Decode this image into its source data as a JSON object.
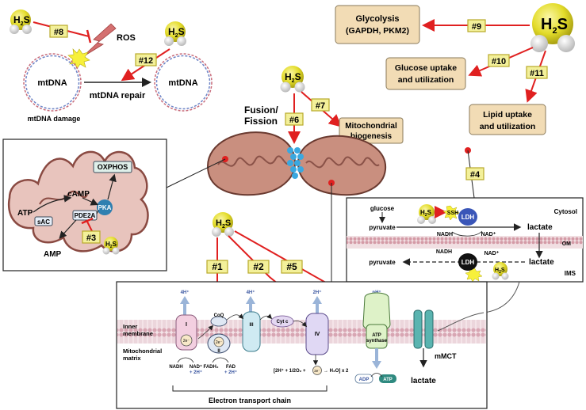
{
  "h2s": {
    "h": "H",
    "sub": "2",
    "s": "S"
  },
  "markers": {
    "m1": "#1",
    "m2": "#2",
    "m3": "#3",
    "m4": "#4",
    "m5": "#5",
    "m6": "#6",
    "m7": "#7",
    "m8": "#8",
    "m9": "#9",
    "m10": "#10",
    "m11": "#11",
    "m12": "#12"
  },
  "top_left": {
    "ros": "ROS",
    "mtdna": "mtDNA",
    "mtdna_damage": "mtDNA damage",
    "mtdna_repair": "mtDNA repair"
  },
  "top_right": {
    "glycolysis_line1": "Glycolysis",
    "glycolysis_line2": "(GAPDH, PKM2)",
    "glucose_line1": "Glucose uptake",
    "glucose_line2": "and utilization",
    "lipid_line1": "Lipid uptake",
    "lipid_line2": "and utilization"
  },
  "center": {
    "fusion_line1": "Fusion/",
    "fusion_line2": "Fission",
    "biogenesis_line1": "Mitochondrial",
    "biogenesis_line2": "biogenesis"
  },
  "left_panel": {
    "oxphos": "OXPHOS",
    "camp": "cAMP",
    "atp": "ATP",
    "pka": "PKA",
    "pde2a": "PDE2A",
    "sac": "sAC",
    "amp": "AMP"
  },
  "right_panel": {
    "glucose": "glucose",
    "pyruvate": "pyruvate",
    "ssh": "SSH",
    "ldh": "LDH",
    "lactate": "lactate",
    "nadh": "NADH",
    "nad": "NAD⁺",
    "cytosol": "Cytosol",
    "om": "OM",
    "ims": "IMS"
  },
  "bottom_panel": {
    "proton_4h_1": "4H⁺",
    "proton_4h_2": "4H⁺",
    "proton_2h": "2H⁺",
    "proton_nh": "nH⁺",
    "coq": "CoQ",
    "complex_i": "I",
    "complex_ii": "II",
    "complex_iii": "III",
    "complex_iv": "IV",
    "cytc": "Cyt c",
    "e2": "2e⁻",
    "atp_synthase_line1": "ATP",
    "atp_synthase_line2": "synthase",
    "inner_line1": "Inner",
    "inner_line2": "membrane",
    "matrix_line1": "Mitochondrial",
    "matrix_line2": "matrix",
    "nadh": "NADH",
    "nad_line1": "NAD⁺",
    "nad_line2": "+ 2H⁺",
    "fadh2": "FADH₂",
    "fad_line1": "FAD",
    "fad_line2": "+ 2H⁺",
    "reaction": "[2H⁺ + 1/2O₂ +",
    "reaction_end": "→ H₂O] x 2",
    "adp": "ADP",
    "atp": "ATP",
    "mmct": "mMCT",
    "lactate": "lactate",
    "etc": "Electron transport chain"
  },
  "colors": {
    "marker_yellow": "#f3f09a",
    "marker_border": "#b8a92a",
    "arrow_red": "#e02020",
    "beige": "#f2dcb5",
    "mito_fill": "#c98f7f",
    "h2s_yellow": "#e5e02e"
  }
}
